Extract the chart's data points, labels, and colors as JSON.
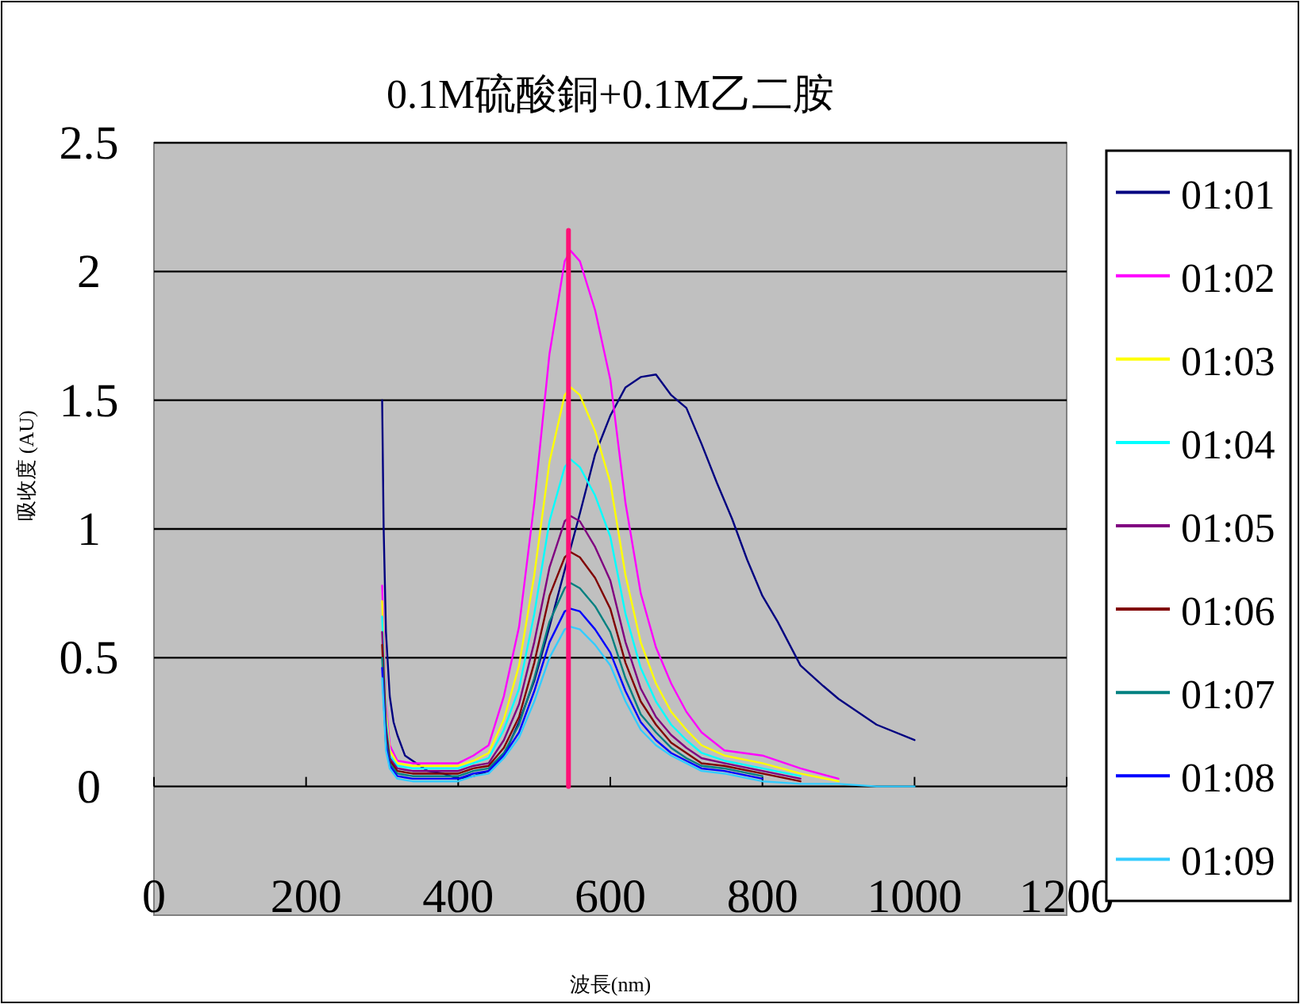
{
  "chart_data": {
    "type": "line",
    "title": "0.1M硫酸銅+0.1M乙二胺",
    "xlabel": "波長(nm)",
    "ylabel": "吸收度 (AU)",
    "x": [
      300,
      305,
      310,
      320,
      340,
      360,
      380,
      400,
      420,
      440,
      460,
      480,
      500,
      520,
      540,
      548,
      560,
      580,
      600,
      620,
      640,
      660,
      680,
      700,
      720,
      750,
      800,
      850,
      900,
      950,
      1000
    ],
    "xlim": [
      0,
      1200
    ],
    "xticks": [
      0,
      200,
      400,
      600,
      800,
      1000,
      1200
    ],
    "ylim": [
      -0.5,
      2.5
    ],
    "yticks": [
      0,
      0.5,
      1,
      1.5,
      2,
      2.5
    ],
    "grid": "y",
    "legend": "right",
    "series": [
      {
        "name": "01:01",
        "color": "#000080",
        "x": [
          300,
          302,
          305,
          310,
          315,
          320,
          330,
          340,
          360,
          380,
          400,
          420,
          440,
          460,
          480,
          500,
          520,
          540,
          560,
          580,
          600,
          620,
          640,
          660,
          680,
          700,
          720,
          740,
          760,
          780,
          800,
          820,
          850,
          880,
          900,
          950,
          1000
        ],
        "values": [
          1.5,
          1.0,
          0.6,
          0.35,
          0.25,
          0.2,
          0.12,
          0.1,
          0.06,
          0.05,
          0.03,
          0.04,
          0.06,
          0.12,
          0.25,
          0.41,
          0.62,
          0.84,
          1.06,
          1.29,
          1.44,
          1.55,
          1.59,
          1.6,
          1.52,
          1.47,
          1.33,
          1.18,
          1.04,
          0.88,
          0.74,
          0.64,
          0.47,
          0.39,
          0.34,
          0.24,
          0.18
        ]
      },
      {
        "name": "01:02",
        "color": "#ff00ff",
        "values": [
          0.78,
          0.32,
          0.16,
          0.1,
          0.09,
          0.09,
          0.09,
          0.09,
          0.12,
          0.16,
          0.35,
          0.62,
          1.1,
          1.68,
          2.04,
          2.08,
          2.04,
          1.85,
          1.58,
          1.1,
          0.75,
          0.54,
          0.4,
          0.29,
          0.21,
          0.14,
          0.12,
          0.07,
          0.03,
          null,
          null
        ]
      },
      {
        "name": "01:03",
        "color": "#ffff00",
        "values": [
          0.72,
          0.29,
          0.14,
          0.09,
          0.08,
          0.08,
          0.08,
          0.08,
          0.1,
          0.13,
          0.26,
          0.47,
          0.82,
          1.26,
          1.52,
          1.55,
          1.52,
          1.38,
          1.18,
          0.82,
          0.56,
          0.4,
          0.29,
          0.22,
          0.16,
          0.12,
          0.09,
          0.05,
          0.02,
          null,
          null
        ]
      },
      {
        "name": "01:04",
        "color": "#00ffff",
        "values": [
          0.66,
          0.26,
          0.12,
          0.08,
          0.07,
          0.07,
          0.07,
          0.07,
          0.09,
          0.11,
          0.22,
          0.38,
          0.67,
          1.03,
          1.24,
          1.27,
          1.24,
          1.13,
          0.97,
          0.67,
          0.46,
          0.33,
          0.24,
          0.18,
          0.13,
          0.1,
          0.07,
          0.04,
          null,
          null,
          null
        ]
      },
      {
        "name": "01:05",
        "color": "#800080",
        "values": [
          0.6,
          0.23,
          0.11,
          0.07,
          0.06,
          0.06,
          0.06,
          0.06,
          0.08,
          0.09,
          0.18,
          0.32,
          0.56,
          0.85,
          1.03,
          1.05,
          1.03,
          0.93,
          0.8,
          0.56,
          0.38,
          0.27,
          0.2,
          0.15,
          0.11,
          0.09,
          0.06,
          0.03,
          null,
          null,
          null
        ]
      },
      {
        "name": "01:06",
        "color": "#800000",
        "values": [
          0.55,
          0.2,
          0.1,
          0.06,
          0.05,
          0.05,
          0.05,
          0.05,
          0.07,
          0.08,
          0.15,
          0.27,
          0.48,
          0.74,
          0.89,
          0.91,
          0.89,
          0.81,
          0.69,
          0.48,
          0.33,
          0.24,
          0.17,
          0.13,
          0.09,
          0.08,
          0.05,
          0.02,
          null,
          null,
          null
        ]
      },
      {
        "name": "01:07",
        "color": "#008080",
        "values": [
          0.5,
          0.18,
          0.09,
          0.05,
          0.04,
          0.04,
          0.04,
          0.04,
          0.06,
          0.07,
          0.13,
          0.24,
          0.42,
          0.64,
          0.77,
          0.79,
          0.77,
          0.7,
          0.6,
          0.42,
          0.28,
          0.21,
          0.15,
          0.11,
          0.08,
          0.07,
          0.04,
          null,
          null,
          null,
          null
        ]
      },
      {
        "name": "01:08",
        "color": "#0000ff",
        "values": [
          0.46,
          0.16,
          0.08,
          0.04,
          0.03,
          0.03,
          0.03,
          0.03,
          0.05,
          0.06,
          0.12,
          0.21,
          0.37,
          0.56,
          0.68,
          0.69,
          0.68,
          0.61,
          0.52,
          0.37,
          0.25,
          0.18,
          0.13,
          0.1,
          0.07,
          0.06,
          0.03,
          null,
          null,
          null,
          null
        ]
      },
      {
        "name": "01:09",
        "color": "#33ccff",
        "values": [
          0.42,
          0.14,
          0.07,
          0.03,
          0.02,
          0.02,
          0.02,
          0.02,
          0.04,
          0.05,
          0.11,
          0.19,
          0.33,
          0.5,
          0.61,
          0.62,
          0.61,
          0.55,
          0.47,
          0.33,
          0.22,
          0.16,
          0.12,
          0.09,
          0.06,
          0.05,
          0.02,
          0.01,
          0.01,
          0,
          0
        ]
      },
      {
        "color": "#ff1177",
        "x": [
          545,
          545
        ],
        "values": [
          0,
          2.16
        ]
      }
    ]
  }
}
